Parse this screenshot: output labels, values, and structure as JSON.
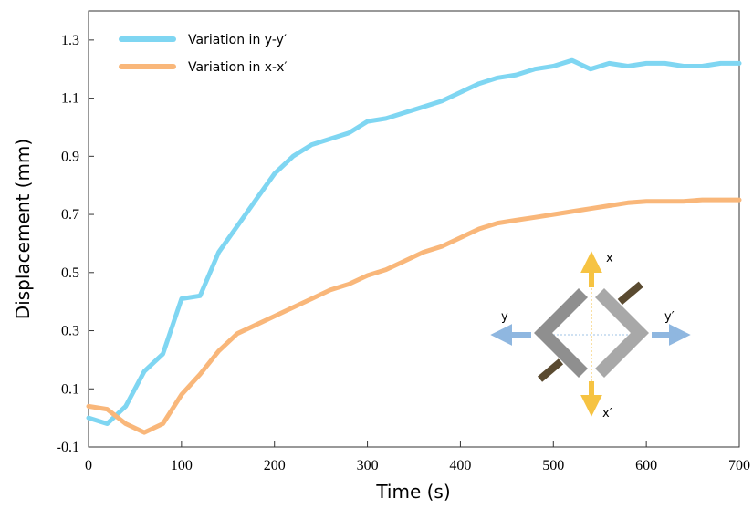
{
  "chart_data": {
    "type": "line",
    "x_label": "Time (s)",
    "y_label": "Displacement (mm)",
    "x": [
      0,
      20,
      40,
      60,
      80,
      100,
      120,
      140,
      160,
      180,
      200,
      220,
      240,
      260,
      280,
      300,
      320,
      340,
      360,
      380,
      400,
      420,
      440,
      460,
      480,
      500,
      520,
      540,
      560,
      580,
      600,
      620,
      640,
      660,
      680,
      700
    ],
    "series": [
      {
        "name": "Variation in y-y′",
        "color": "#7fd6f2",
        "values": [
          0.0,
          -0.02,
          0.04,
          0.16,
          0.22,
          0.41,
          0.42,
          0.57,
          0.66,
          0.75,
          0.84,
          0.9,
          0.94,
          0.96,
          0.98,
          1.02,
          1.03,
          1.05,
          1.07,
          1.09,
          1.12,
          1.15,
          1.17,
          1.18,
          1.2,
          1.21,
          1.23,
          1.2,
          1.22,
          1.21,
          1.22,
          1.22,
          1.21,
          1.21,
          1.22,
          1.22
        ]
      },
      {
        "name": "Variation in x-x′",
        "color": "#f9b77a",
        "values": [
          0.04,
          0.03,
          -0.02,
          -0.05,
          -0.02,
          0.08,
          0.15,
          0.23,
          0.29,
          0.32,
          0.35,
          0.38,
          0.41,
          0.44,
          0.46,
          0.49,
          0.51,
          0.54,
          0.57,
          0.59,
          0.62,
          0.65,
          0.67,
          0.68,
          0.69,
          0.7,
          0.71,
          0.72,
          0.73,
          0.74,
          0.745,
          0.745,
          0.745,
          0.75,
          0.75,
          0.75
        ]
      }
    ],
    "xlim": [
      0,
      700
    ],
    "xticks": [
      0,
      100,
      200,
      300,
      400,
      500,
      600,
      700
    ],
    "ylim": [
      -0.1,
      1.4
    ],
    "yticks": [
      -0.1,
      0.1,
      0.3,
      0.5,
      0.7,
      0.9,
      1.1,
      1.3
    ],
    "grid": false,
    "legend": "upper left",
    "annotations": [
      "x",
      "y",
      "y′",
      "x′"
    ]
  }
}
